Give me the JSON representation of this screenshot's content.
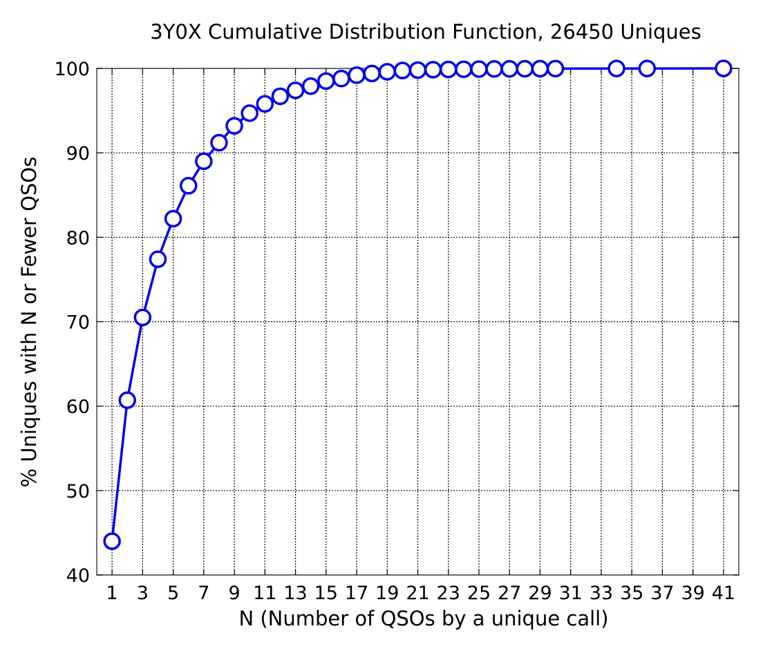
{
  "chart_data": {
    "type": "line",
    "title": "3Y0X Cumulative Distribution Function, 26450 Uniques",
    "xlabel": "N (Number of QSOs by a unique call)",
    "ylabel": "% Uniques with N or Fewer QSOs",
    "xlim": [
      0,
      42
    ],
    "ylim": [
      40,
      100
    ],
    "xticks": [
      1,
      3,
      5,
      7,
      9,
      11,
      13,
      15,
      17,
      19,
      21,
      23,
      25,
      27,
      29,
      31,
      33,
      35,
      37,
      39,
      41
    ],
    "yticks": [
      40,
      50,
      60,
      70,
      80,
      90,
      100
    ],
    "grid": true,
    "marker": "circle",
    "colors": {
      "series": "#0000ee"
    },
    "series": [
      {
        "x": [
          1,
          2,
          3,
          4,
          5,
          6,
          7,
          8,
          9,
          10,
          11,
          12,
          13,
          14,
          15,
          16,
          17,
          18,
          19,
          20,
          21,
          22,
          23,
          24,
          25,
          26,
          27,
          28,
          29,
          30,
          34,
          36,
          41
        ],
        "y": [
          44.0,
          60.7,
          70.5,
          77.4,
          82.2,
          86.1,
          89.0,
          91.2,
          93.2,
          94.7,
          95.8,
          96.7,
          97.4,
          97.9,
          98.5,
          98.8,
          99.2,
          99.4,
          99.6,
          99.75,
          99.8,
          99.85,
          99.88,
          99.9,
          99.92,
          99.94,
          99.95,
          99.96,
          99.97,
          99.98,
          99.99,
          99.99,
          100.0
        ]
      }
    ]
  }
}
